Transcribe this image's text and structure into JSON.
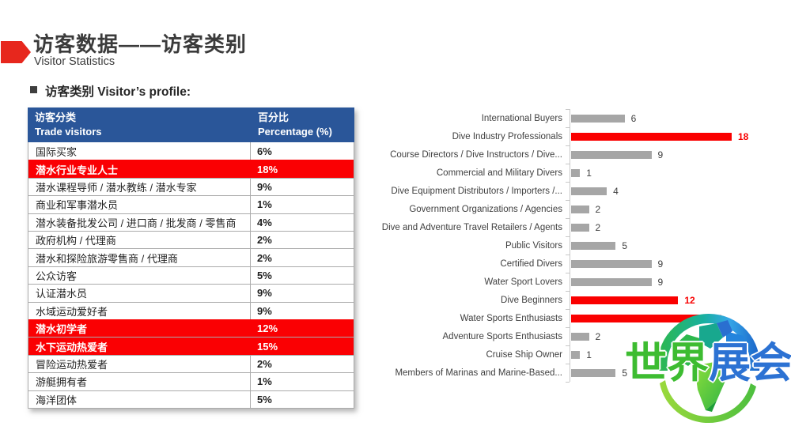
{
  "header": {
    "title": "访客数据——访客类别",
    "subtitle": "Visitor Statistics",
    "section": "访客类别 Visitor’s profile:"
  },
  "table": {
    "columns": {
      "col1_zh": "访客分类",
      "col1_en": "Trade visitors",
      "col2_zh": "百分比",
      "col2_en": "Percentage (%)"
    },
    "rows": [
      {
        "label": "国际买家",
        "value": "6%",
        "highlight": false
      },
      {
        "label": "潜水行业专业人士",
        "value": "18%",
        "highlight": true
      },
      {
        "label": "潜水课程导师 / 潜水教练 / 潜水专家",
        "value": "9%",
        "highlight": false
      },
      {
        "label": "商业和军事潜水员",
        "value": "1%",
        "highlight": false
      },
      {
        "label": "潜水装备批发公司 / 进口商 / 批发商 / 零售商",
        "value": "4%",
        "highlight": false
      },
      {
        "label": "政府机构 / 代理商",
        "value": "2%",
        "highlight": false
      },
      {
        "label": "潜水和探险旅游零售商 / 代理商",
        "value": "2%",
        "highlight": false
      },
      {
        "label": "公众访客",
        "value": "5%",
        "highlight": false
      },
      {
        "label": "认证潜水员",
        "value": "9%",
        "highlight": false
      },
      {
        "label": "水域运动爱好者",
        "value": "9%",
        "highlight": false
      },
      {
        "label": "潜水初学者",
        "value": "12%",
        "highlight": true
      },
      {
        "label": "水下运动热爱者",
        "value": "15%",
        "highlight": true
      },
      {
        "label": "冒险运动热爱者",
        "value": "2%",
        "highlight": false
      },
      {
        "label": "游艇拥有者",
        "value": "1%",
        "highlight": false
      },
      {
        "label": "海洋团体",
        "value": "5%",
        "highlight": false
      }
    ]
  },
  "chart_data": {
    "type": "bar",
    "orientation": "horizontal",
    "categories": [
      "International Buyers",
      "Dive Industry Professionals",
      "Course Directors / Dive Instructors / Dive...",
      "Commercial and Military Divers",
      "Dive Equipment Distributors / Importers /...",
      "Government Organizations / Agencies",
      "Dive and Adventure Travel Retailers / Agents",
      "Public Visitors",
      "Certified Divers",
      "Water Sport Lovers",
      "Dive Beginners",
      "Water Sports Enthusiasts",
      "Adventure Sports Enthusiasts",
      "Cruise Ship Owner",
      "Members of Marinas and Marine-Based..."
    ],
    "values": [
      6,
      18,
      9,
      1,
      4,
      2,
      2,
      5,
      9,
      9,
      12,
      15,
      2,
      1,
      5
    ],
    "highlight_indices": [
      1,
      10,
      11
    ],
    "value_labels": true,
    "xlim": [
      0,
      18
    ],
    "bar_color": "#a6a6a6",
    "highlight_color": "#fa0000",
    "legend": "none",
    "grid": "off",
    "title": ""
  },
  "watermark": {
    "text_green": "世界",
    "text_blue": "展会"
  },
  "colors": {
    "accent_red": "#e7271d",
    "table_header_blue": "#2a5699",
    "table_highlight_red": "#fa0003",
    "text_dark": "#3b3b3b"
  }
}
